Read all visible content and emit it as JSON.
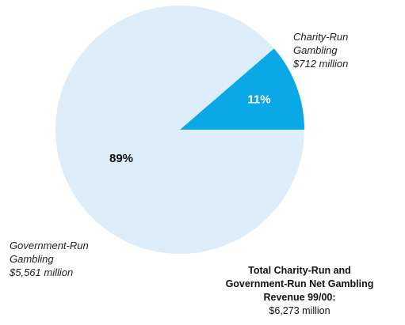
{
  "colors": {
    "charity": "#0aa8e6",
    "government": "#ddeefa",
    "label_text": "#111111"
  },
  "chart_data": {
    "type": "pie",
    "slices": [
      {
        "name_line1": "Charity-Run",
        "name_line2": "Gambling",
        "amount": "$712 million",
        "value": 712,
        "percent_label": "11%"
      },
      {
        "name_line1": "Government-Run",
        "name_line2": "Gambling",
        "amount": "$5,561 million",
        "value": 5561,
        "percent_label": "89%"
      }
    ],
    "total": {
      "line1": "Total Charity-Run and",
      "line2": "Government-Run Net Gambling",
      "line3": "Revenue 99/00:",
      "value": "$6,273 million"
    }
  }
}
